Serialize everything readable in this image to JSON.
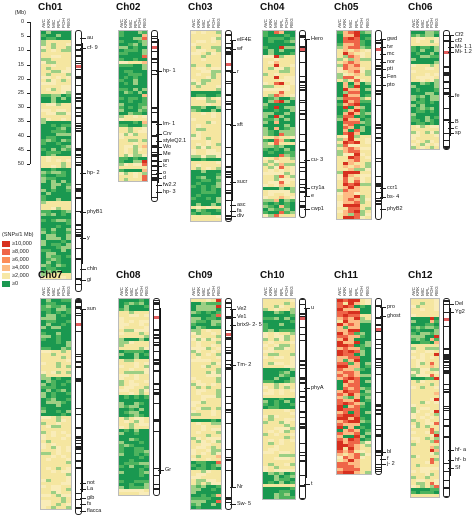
{
  "scale": {
    "unit_label": "(Mb)",
    "ticks": [
      "0",
      "5",
      "10",
      "15",
      "20",
      "25",
      "30",
      "35",
      "40",
      "45",
      "50"
    ]
  },
  "legend": {
    "title": "(SNPs/1 Mb)",
    "items": [
      {
        "label": "≥10,000",
        "color": "#d7301f"
      },
      {
        "label": "≥8,000",
        "color": "#ef6548"
      },
      {
        "label": "≥6,000",
        "color": "#fc8d59"
      },
      {
        "label": "≥4,000",
        "color": "#fdbb84"
      },
      {
        "label": "≥2,000",
        "color": "#f7e8a6"
      },
      {
        "label": "≥0",
        "color": "#1a9850"
      }
    ]
  },
  "colors": {
    "green_dark": "#1a9850",
    "green": "#4db35e",
    "green_light": "#9ccf84",
    "yellow": "#f5e6a0",
    "yellow_pale": "#f9ecb8",
    "orange": "#fdbb84",
    "red_orange": "#ef6548",
    "red": "#d7301f",
    "centromere": "#e05a5a"
  },
  "chromosomes": [
    {
      "name": "Ch01",
      "columns": [
        "AVC",
        "KRK",
        "MIC",
        "RPL",
        "POH",
        "REG"
      ],
      "genes": [
        "au",
        "cf- 9",
        "hp- 2",
        "phyB1",
        "y",
        "chln",
        "gi"
      ]
    },
    {
      "name": "Ch02",
      "columns": [
        "AVC",
        "KRK",
        "MIC",
        "RPL",
        "POH",
        "REG"
      ],
      "genes": [
        "hp- 1",
        "lm- 1",
        "Crv",
        "styleQ2.1",
        "Wo",
        "Me",
        "an",
        "lc",
        "o",
        "d",
        "fw2.2",
        "hp- 3"
      ]
    },
    {
      "name": "Ch03",
      "columns": [
        "AVC",
        "KRK",
        "MIC",
        "RPL",
        "POH",
        "REG"
      ],
      "genes": [
        "elF4E",
        "wf",
        "r",
        "sft",
        "sucr",
        "asc",
        "fa",
        "div"
      ]
    },
    {
      "name": "Ch04",
      "columns": [
        "AVC",
        "KRK",
        "MIC",
        "RPL",
        "POH",
        "REG"
      ],
      "genes": [
        "Hero",
        "cu- 3",
        "cry1a",
        "e",
        "cwp1"
      ]
    },
    {
      "name": "Ch05",
      "columns": [
        "AVC",
        "KRK",
        "MIC",
        "RPL",
        "POH",
        "REG"
      ],
      "genes": [
        "gwd",
        "tvr",
        "mc",
        "nor",
        "pti",
        "Fen",
        "pto",
        "ccr1",
        "bs- 4",
        "phyB2"
      ]
    },
    {
      "name": "Ch06",
      "columns": [
        "AVC",
        "KRK",
        "MIC",
        "RPL",
        "POH",
        "REG"
      ],
      "genes": [
        "Cf2",
        "cf2",
        "Mi- 1.1",
        "Mi- 1.2",
        "fe",
        "B",
        "c",
        "sp"
      ]
    },
    {
      "name": "Ch07",
      "columns": [
        "AVC",
        "KRK",
        "MIC",
        "RPL",
        "POH",
        "REG"
      ],
      "genes": [
        "sun",
        "not",
        "La",
        "gib",
        "fs",
        "flacca"
      ]
    },
    {
      "name": "Ch08",
      "columns": [
        "AVC",
        "KRK",
        "MIC",
        "RPL",
        "POH",
        "REG"
      ],
      "genes": [
        "Gr"
      ]
    },
    {
      "name": "Ch09",
      "columns": [
        "AVC",
        "KRK",
        "MIC",
        "RPL",
        "POH",
        "REG"
      ],
      "genes": [
        "Ve2",
        "Ve1",
        "brix9- 2- 5",
        "Tm- 2",
        "Nr",
        "Sw- 5"
      ]
    },
    {
      "name": "Ch10",
      "columns": [
        "AVC",
        "KRK",
        "MIC",
        "RPL",
        "POH",
        "REG"
      ],
      "genes": [
        "u",
        "phyA",
        "t"
      ]
    },
    {
      "name": "Ch11",
      "columns": [
        "AVC",
        "KRK",
        "MIC",
        "RPL",
        "POH",
        "REG"
      ],
      "genes": [
        "pro",
        "ghost",
        "bl",
        "f",
        "j- 2"
      ]
    },
    {
      "name": "Ch12",
      "columns": [
        "AVC",
        "KRK",
        "MIC",
        "RPL",
        "POH",
        "REG"
      ],
      "genes": [
        "Del",
        "Yg2",
        "hf- a",
        "hf- b",
        "Sf"
      ]
    }
  ]
}
